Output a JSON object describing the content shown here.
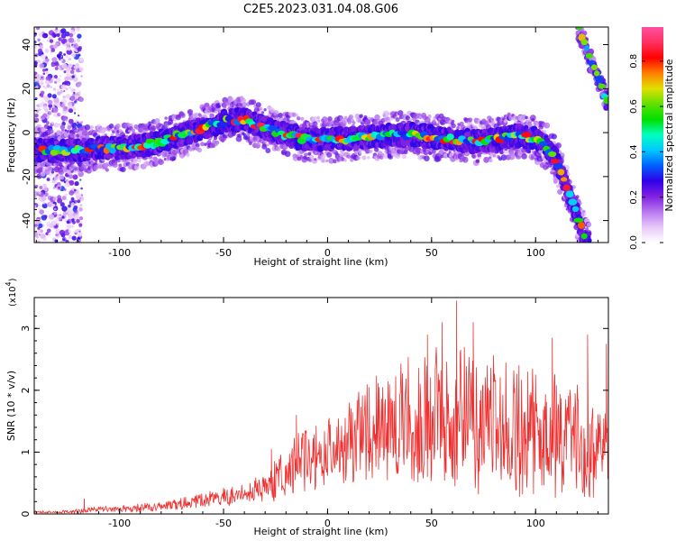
{
  "title": "C2E5.2023.031.04.08.G06",
  "chart_data": [
    {
      "type": "heatmap",
      "title": "C2E5.2023.031.04.08.G06",
      "xlabel": "Height of straight line (km)",
      "ylabel": "Frequency (Hz)",
      "xlim": [
        -141,
        135
      ],
      "ylim": [
        -50,
        48
      ],
      "x_ticks": [
        -100,
        -50,
        0,
        50,
        100
      ],
      "y_ticks": [
        -40,
        -20,
        0,
        20,
        40
      ],
      "x_tick_labels": [
        "-100",
        "-50",
        "0",
        "50",
        "100"
      ],
      "y_tick_labels": [
        "-40",
        "-20",
        "0",
        "20",
        "40"
      ],
      "ridge": {
        "x": [
          -141,
          -130,
          -120,
          -110,
          -100,
          -90,
          -80,
          -70,
          -60,
          -50,
          -45,
          -40,
          -35,
          -30,
          -20,
          -10,
          0,
          10,
          20,
          30,
          40,
          50,
          60,
          70,
          80,
          90,
          100,
          105,
          110,
          115,
          120,
          125
        ],
        "y": [
          -8,
          -8,
          -8,
          -7,
          -7,
          -6,
          -4,
          -1,
          2,
          5,
          6,
          6,
          4,
          2,
          -1,
          -3,
          -3,
          -3,
          -2,
          -1,
          -1,
          -2,
          -3,
          -4,
          -3,
          -1,
          -3,
          -6,
          -13,
          -25,
          -38,
          -50
        ]
      },
      "upper_branch": {
        "x": [
          120,
          123,
          126,
          129,
          132,
          135
        ],
        "y": [
          50,
          42,
          34,
          27,
          20,
          12
        ]
      },
      "colorbar": {
        "label": "Normalized spectral amplitude",
        "range": [
          0,
          0.95
        ],
        "ticks": [
          0.0,
          0.2,
          0.4,
          0.6,
          0.8
        ],
        "tick_labels": [
          "0.0",
          "0.2",
          "0.4",
          "0.6",
          "0.8"
        ],
        "colors": [
          "#ffffff",
          "#e8c8f8",
          "#b878f0",
          "#8020e0",
          "#3000e8",
          "#0060ff",
          "#00c8ff",
          "#00ffc0",
          "#00e000",
          "#60e000",
          "#e0e000",
          "#ff8000",
          "#ff0000",
          "#ff3060",
          "#ff50a0"
        ]
      }
    },
    {
      "type": "line",
      "xlabel": "Height of straight line (km)",
      "ylabel": "SNR (10 * v/v)",
      "y_multiplier": "(x10",
      "y_exponent": "4",
      "y_multiplier_close": ")",
      "xlim": [
        -141,
        135
      ],
      "ylim": [
        0,
        3.5
      ],
      "x_ticks": [
        -100,
        -50,
        0,
        50,
        100
      ],
      "y_ticks": [
        0,
        1,
        2,
        3
      ],
      "x_tick_labels": [
        "-100",
        "-50",
        "0",
        "50",
        "100"
      ],
      "y_tick_labels": [
        "0",
        "1",
        "2",
        "3"
      ],
      "color": "#ee3030",
      "envelope": {
        "x": [
          -141,
          -130,
          -120,
          -110,
          -100,
          -90,
          -80,
          -70,
          -60,
          -50,
          -40,
          -30,
          -25,
          -20,
          -10,
          0,
          10,
          20,
          30,
          40,
          50,
          60,
          70,
          80,
          90,
          100,
          110,
          120,
          130,
          135
        ],
        "mean": [
          0.03,
          0.03,
          0.05,
          0.07,
          0.08,
          0.1,
          0.13,
          0.17,
          0.22,
          0.28,
          0.32,
          0.45,
          0.55,
          0.7,
          0.9,
          1.05,
          1.2,
          1.35,
          1.45,
          1.55,
          1.6,
          1.55,
          1.5,
          1.45,
          1.35,
          1.3,
          1.25,
          1.15,
          1.05,
          1.0
        ],
        "spread": [
          0.02,
          0.02,
          0.05,
          0.05,
          0.06,
          0.07,
          0.08,
          0.1,
          0.12,
          0.15,
          0.18,
          0.25,
          0.35,
          0.45,
          0.55,
          0.6,
          0.7,
          0.85,
          0.95,
          1.05,
          1.15,
          1.2,
          1.2,
          1.15,
          1.1,
          1.05,
          1.0,
          0.95,
          0.9,
          0.9
        ]
      },
      "peaks": [
        {
          "x": -117,
          "y": 0.25
        },
        {
          "x": -27,
          "y": 1.05
        },
        {
          "x": -15,
          "y": 1.6
        },
        {
          "x": 20,
          "y": 2.05
        },
        {
          "x": 48,
          "y": 2.9
        },
        {
          "x": 55,
          "y": 3.1
        },
        {
          "x": 62,
          "y": 3.45
        },
        {
          "x": 70,
          "y": 3.1
        },
        {
          "x": 108,
          "y": 2.85
        },
        {
          "x": 125,
          "y": 2.9
        },
        {
          "x": 134,
          "y": 2.75
        }
      ]
    }
  ]
}
